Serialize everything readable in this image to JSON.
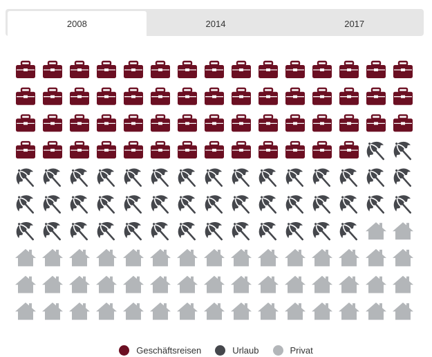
{
  "tabs": [
    {
      "label": "2008",
      "active": true
    },
    {
      "label": "2014",
      "active": false
    },
    {
      "label": "2017",
      "active": false
    }
  ],
  "chart_data": {
    "type": "waffle",
    "title": "",
    "grid": {
      "columns": 15,
      "rows": 10
    },
    "categories": [
      "Geschäftsreisen",
      "Urlaub",
      "Privat"
    ],
    "values": [
      58,
      45,
      47
    ],
    "series": [
      {
        "name": "Geschäftsreisen",
        "value": 58,
        "icon": "briefcase-icon",
        "color": "#6b0f22"
      },
      {
        "name": "Urlaub",
        "value": 45,
        "icon": "umbrella-icon",
        "color": "#45474c"
      },
      {
        "name": "Privat",
        "value": 47,
        "icon": "house-icon",
        "color": "#b3b6b9"
      }
    ],
    "legend_position": "bottom-center"
  }
}
